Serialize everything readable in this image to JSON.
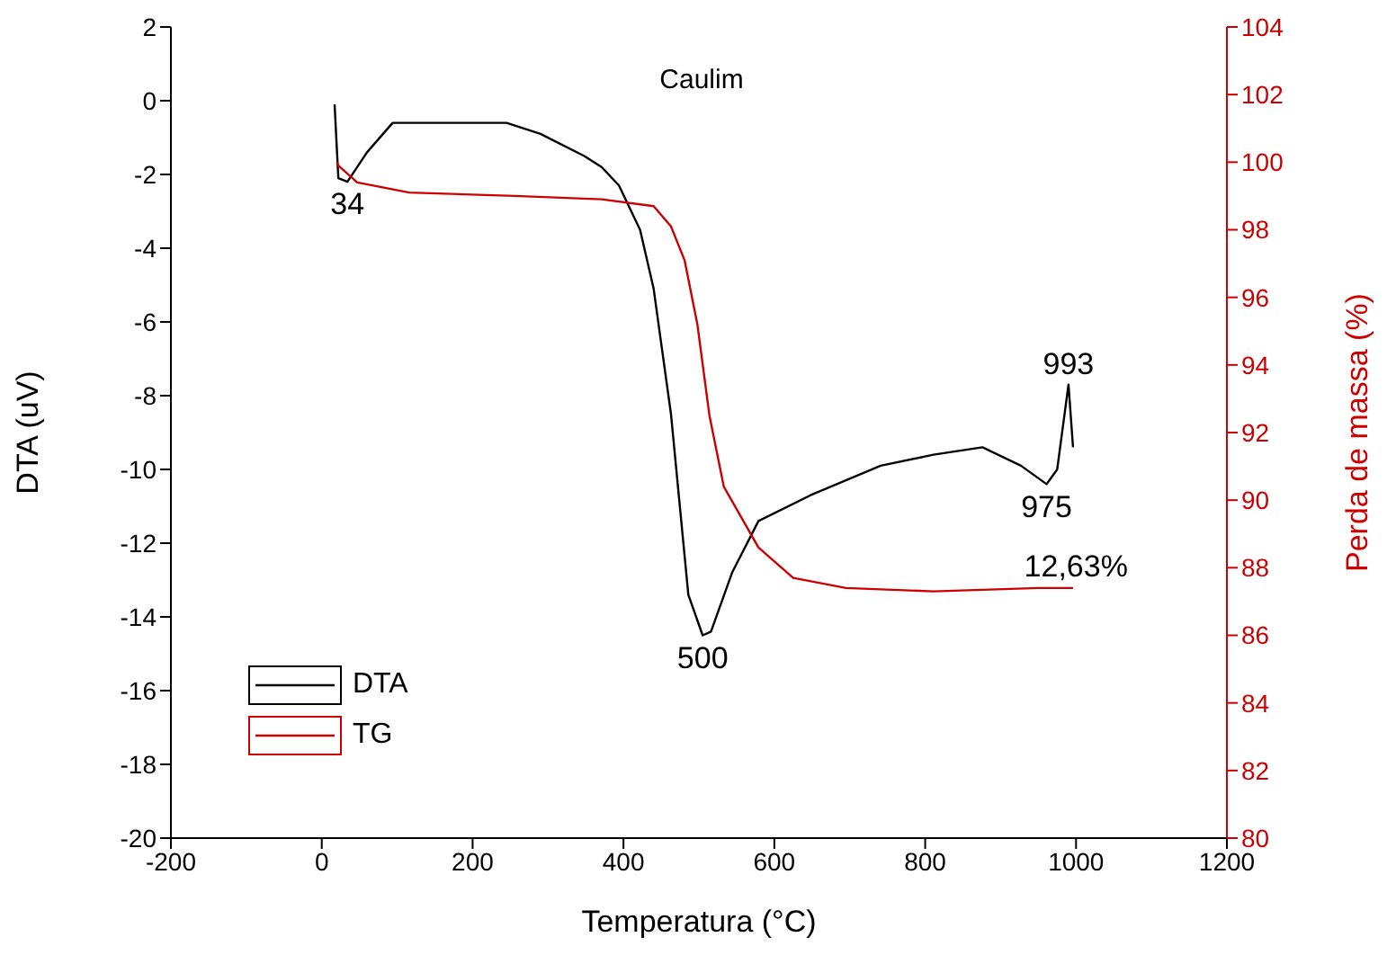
{
  "chart_data": {
    "type": "line",
    "title": "Caulim",
    "xlabel": "Temperatura (°C)",
    "ylabel": "DTA (uV)",
    "y2label": "Perda de massa (%)",
    "xlim": [
      -200,
      1200
    ],
    "xticks": [
      -200,
      0,
      200,
      400,
      600,
      800,
      1000,
      1200
    ],
    "ylim": [
      -20,
      2
    ],
    "yticks": [
      -20,
      -18,
      -16,
      -14,
      -12,
      -10,
      -8,
      -6,
      -4,
      -2,
      0,
      2
    ],
    "y2lim": [
      80,
      104
    ],
    "y2ticks": [
      80,
      82,
      84,
      86,
      88,
      90,
      92,
      94,
      96,
      98,
      100,
      102,
      104
    ],
    "legend": "bottom left",
    "marker": "none",
    "line_style": "solid",
    "series": [
      {
        "name": "DTA",
        "color": "#000000",
        "x": [
          17,
          22,
          34,
          60,
          94,
          150,
          200,
          245,
          290,
          348,
          371,
          394,
          422,
          440,
          463,
          486,
          505,
          516,
          544,
          579,
          648,
          741,
          811,
          876,
          927,
          961,
          975,
          990,
          996
        ],
        "values": [
          -0.1,
          -2.1,
          -2.2,
          -1.4,
          -0.6,
          -0.6,
          -0.6,
          -0.6,
          -0.9,
          -1.5,
          -1.8,
          -2.3,
          -3.5,
          -5.1,
          -8.5,
          -13.4,
          -14.5,
          -14.4,
          -12.8,
          -11.4,
          -10.7,
          -9.9,
          -9.6,
          -9.4,
          -9.9,
          -10.4,
          -10.0,
          -7.7,
          -9.4
        ]
      },
      {
        "name": "TG",
        "color": "#cc0000",
        "axis": "y2",
        "x": [
          20,
          22,
          47,
          116,
          256,
          371,
          440,
          463,
          481,
          498,
          514,
          533,
          579,
          625,
          695,
          811,
          950,
          996
        ],
        "values": [
          100.0,
          99.9,
          99.4,
          99.1,
          99.0,
          98.9,
          98.7,
          98.1,
          97.1,
          95.2,
          92.5,
          90.4,
          88.6,
          87.7,
          87.4,
          87.3,
          87.4,
          87.4
        ]
      }
    ],
    "annotations": [
      {
        "text": "34",
        "x": 34,
        "y": -2.2
      },
      {
        "text": "500",
        "x": 505,
        "y": -14.5
      },
      {
        "text": "975",
        "x": 961,
        "y": -10.4
      },
      {
        "text": "993",
        "x": 990,
        "y": -7.7
      },
      {
        "text": "12,63%",
        "x": 1000,
        "y": -13.2
      }
    ]
  }
}
